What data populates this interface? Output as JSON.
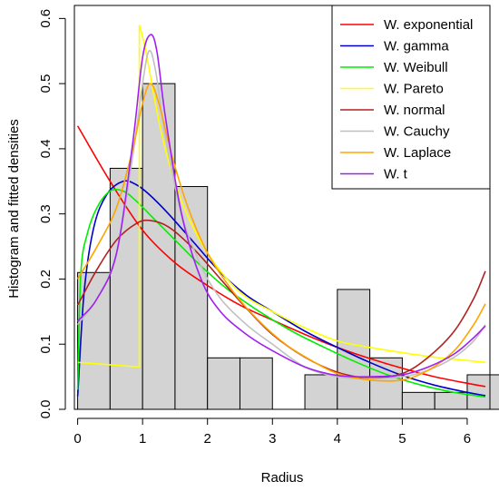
{
  "chart_data": {
    "type": "histogram",
    "xlabel": "Radius",
    "ylabel": "Histogram and fitted densities",
    "xlim": [
      -0.05,
      6.35
    ],
    "ylim": [
      0,
      0.62
    ],
    "x_ticks": [
      0,
      1,
      2,
      3,
      4,
      5,
      6
    ],
    "y_ticks": [
      0.0,
      0.1,
      0.2,
      0.3,
      0.4,
      0.5,
      0.6
    ],
    "x_tick_labels": [
      "0",
      "1",
      "2",
      "3",
      "4",
      "5",
      "6"
    ],
    "y_tick_labels": [
      "0.0",
      "0.1",
      "0.2",
      "0.3",
      "0.4",
      "0.5",
      "0.6"
    ],
    "legend_position": "top-right",
    "bar_color": "#d3d3d3",
    "bins": [
      {
        "x0": 0.0,
        "x1": 0.5,
        "density": 0.21
      },
      {
        "x0": 0.5,
        "x1": 1.0,
        "density": 0.37
      },
      {
        "x0": 1.0,
        "x1": 1.5,
        "density": 0.5
      },
      {
        "x0": 1.5,
        "x1": 2.0,
        "density": 0.342
      },
      {
        "x0": 2.0,
        "x1": 2.5,
        "density": 0.079
      },
      {
        "x0": 2.5,
        "x1": 3.0,
        "density": 0.079
      },
      {
        "x0": 3.0,
        "x1": 3.5,
        "density": 0.0
      },
      {
        "x0": 3.5,
        "x1": 4.0,
        "density": 0.053
      },
      {
        "x0": 4.0,
        "x1": 4.5,
        "density": 0.184
      },
      {
        "x0": 4.5,
        "x1": 5.0,
        "density": 0.079
      },
      {
        "x0": 5.0,
        "x1": 5.5,
        "density": 0.026
      },
      {
        "x0": 5.5,
        "x1": 6.0,
        "density": 0.026
      },
      {
        "x0": 6.0,
        "x1": 6.5,
        "density": 0.053
      }
    ],
    "series": [
      {
        "name": "W. exponential",
        "color": "#ff0000",
        "x": [
          0,
          0.5,
          1,
          1.5,
          2,
          2.5,
          3,
          3.5,
          4,
          4.5,
          5,
          5.5,
          6,
          6.28
        ],
        "y": [
          0.435,
          0.35,
          0.275,
          0.225,
          0.19,
          0.16,
          0.137,
          0.115,
          0.095,
          0.078,
          0.063,
          0.05,
          0.04,
          0.035
        ]
      },
      {
        "name": "W. gamma",
        "color": "#0000cd",
        "x": [
          0,
          0.1,
          0.25,
          0.45,
          0.7,
          0.9,
          1.1,
          1.4,
          1.8,
          2.2,
          2.6,
          3.0,
          3.5,
          4.0,
          4.5,
          5.0,
          5.5,
          6.0,
          6.28
        ],
        "y": [
          0.02,
          0.18,
          0.28,
          0.33,
          0.35,
          0.345,
          0.33,
          0.3,
          0.255,
          0.21,
          0.175,
          0.15,
          0.12,
          0.095,
          0.072,
          0.052,
          0.037,
          0.026,
          0.021
        ]
      },
      {
        "name": "W. Weibull",
        "color": "#00ee00",
        "x": [
          0,
          0.05,
          0.15,
          0.3,
          0.5,
          0.7,
          0.9,
          1.2,
          1.5,
          1.9,
          2.3,
          2.8,
          3.3,
          3.8,
          4.3,
          4.8,
          5.3,
          5.8,
          6.28
        ],
        "y": [
          0.03,
          0.21,
          0.27,
          0.31,
          0.335,
          0.335,
          0.32,
          0.29,
          0.26,
          0.22,
          0.185,
          0.15,
          0.12,
          0.095,
          0.072,
          0.052,
          0.037,
          0.026,
          0.019
        ]
      },
      {
        "name": "W. Pareto",
        "color": "#ffff00",
        "x": [
          0,
          0.95,
          0.95,
          1.05,
          1.3,
          1.6,
          2.0,
          2.5,
          3.0,
          3.5,
          4.0,
          4.5,
          5.0,
          5.5,
          6.0,
          6.28
        ],
        "y": [
          0.072,
          0.065,
          0.59,
          0.55,
          0.42,
          0.32,
          0.24,
          0.18,
          0.15,
          0.125,
          0.105,
          0.095,
          0.087,
          0.08,
          0.075,
          0.072
        ]
      },
      {
        "name": "W. normal",
        "color": "#b22222",
        "x": [
          0,
          0.3,
          0.6,
          0.9,
          1.1,
          1.4,
          1.8,
          2.2,
          2.6,
          3.0,
          3.5,
          4.0,
          4.5,
          5.0,
          5.4,
          5.8,
          6.1,
          6.28
        ],
        "y": [
          0.16,
          0.215,
          0.26,
          0.285,
          0.29,
          0.28,
          0.245,
          0.2,
          0.155,
          0.115,
          0.08,
          0.057,
          0.048,
          0.055,
          0.08,
          0.12,
          0.17,
          0.212
        ]
      },
      {
        "name": "W. Cauchy",
        "color": "#c0c0c0",
        "x": [
          0,
          0.3,
          0.6,
          0.85,
          1.0,
          1.1,
          1.2,
          1.35,
          1.6,
          1.9,
          2.2,
          2.6,
          3.0,
          3.5,
          4.0,
          4.5,
          5.0,
          5.4,
          5.8,
          6.1,
          6.28
        ],
        "y": [
          0.13,
          0.17,
          0.24,
          0.39,
          0.5,
          0.55,
          0.52,
          0.42,
          0.3,
          0.22,
          0.17,
          0.13,
          0.1,
          0.065,
          0.05,
          0.047,
          0.05,
          0.06,
          0.08,
          0.105,
          0.13
        ]
      },
      {
        "name": "W. Laplace",
        "color": "#ffa500",
        "x": [
          0,
          0.3,
          0.6,
          0.85,
          1.0,
          1.12,
          1.25,
          1.45,
          1.7,
          2.0,
          2.4,
          2.8,
          3.2,
          3.6,
          4.0,
          4.5,
          5.0,
          5.4,
          5.8,
          6.1,
          6.28
        ],
        "y": [
          0.2,
          0.25,
          0.31,
          0.4,
          0.47,
          0.5,
          0.47,
          0.39,
          0.31,
          0.24,
          0.18,
          0.135,
          0.1,
          0.075,
          0.055,
          0.045,
          0.045,
          0.06,
          0.09,
          0.13,
          0.162
        ]
      },
      {
        "name": "W. t",
        "color": "#a020f0",
        "x": [
          0,
          0.3,
          0.6,
          0.85,
          1.0,
          1.12,
          1.22,
          1.35,
          1.6,
          1.9,
          2.2,
          2.6,
          3.0,
          3.5,
          4.0,
          4.5,
          5.0,
          5.4,
          5.8,
          6.1,
          6.28
        ],
        "y": [
          0.135,
          0.17,
          0.24,
          0.41,
          0.54,
          0.575,
          0.55,
          0.45,
          0.3,
          0.2,
          0.15,
          0.115,
          0.09,
          0.065,
          0.052,
          0.05,
          0.053,
          0.065,
          0.085,
          0.11,
          0.128
        ]
      }
    ]
  }
}
